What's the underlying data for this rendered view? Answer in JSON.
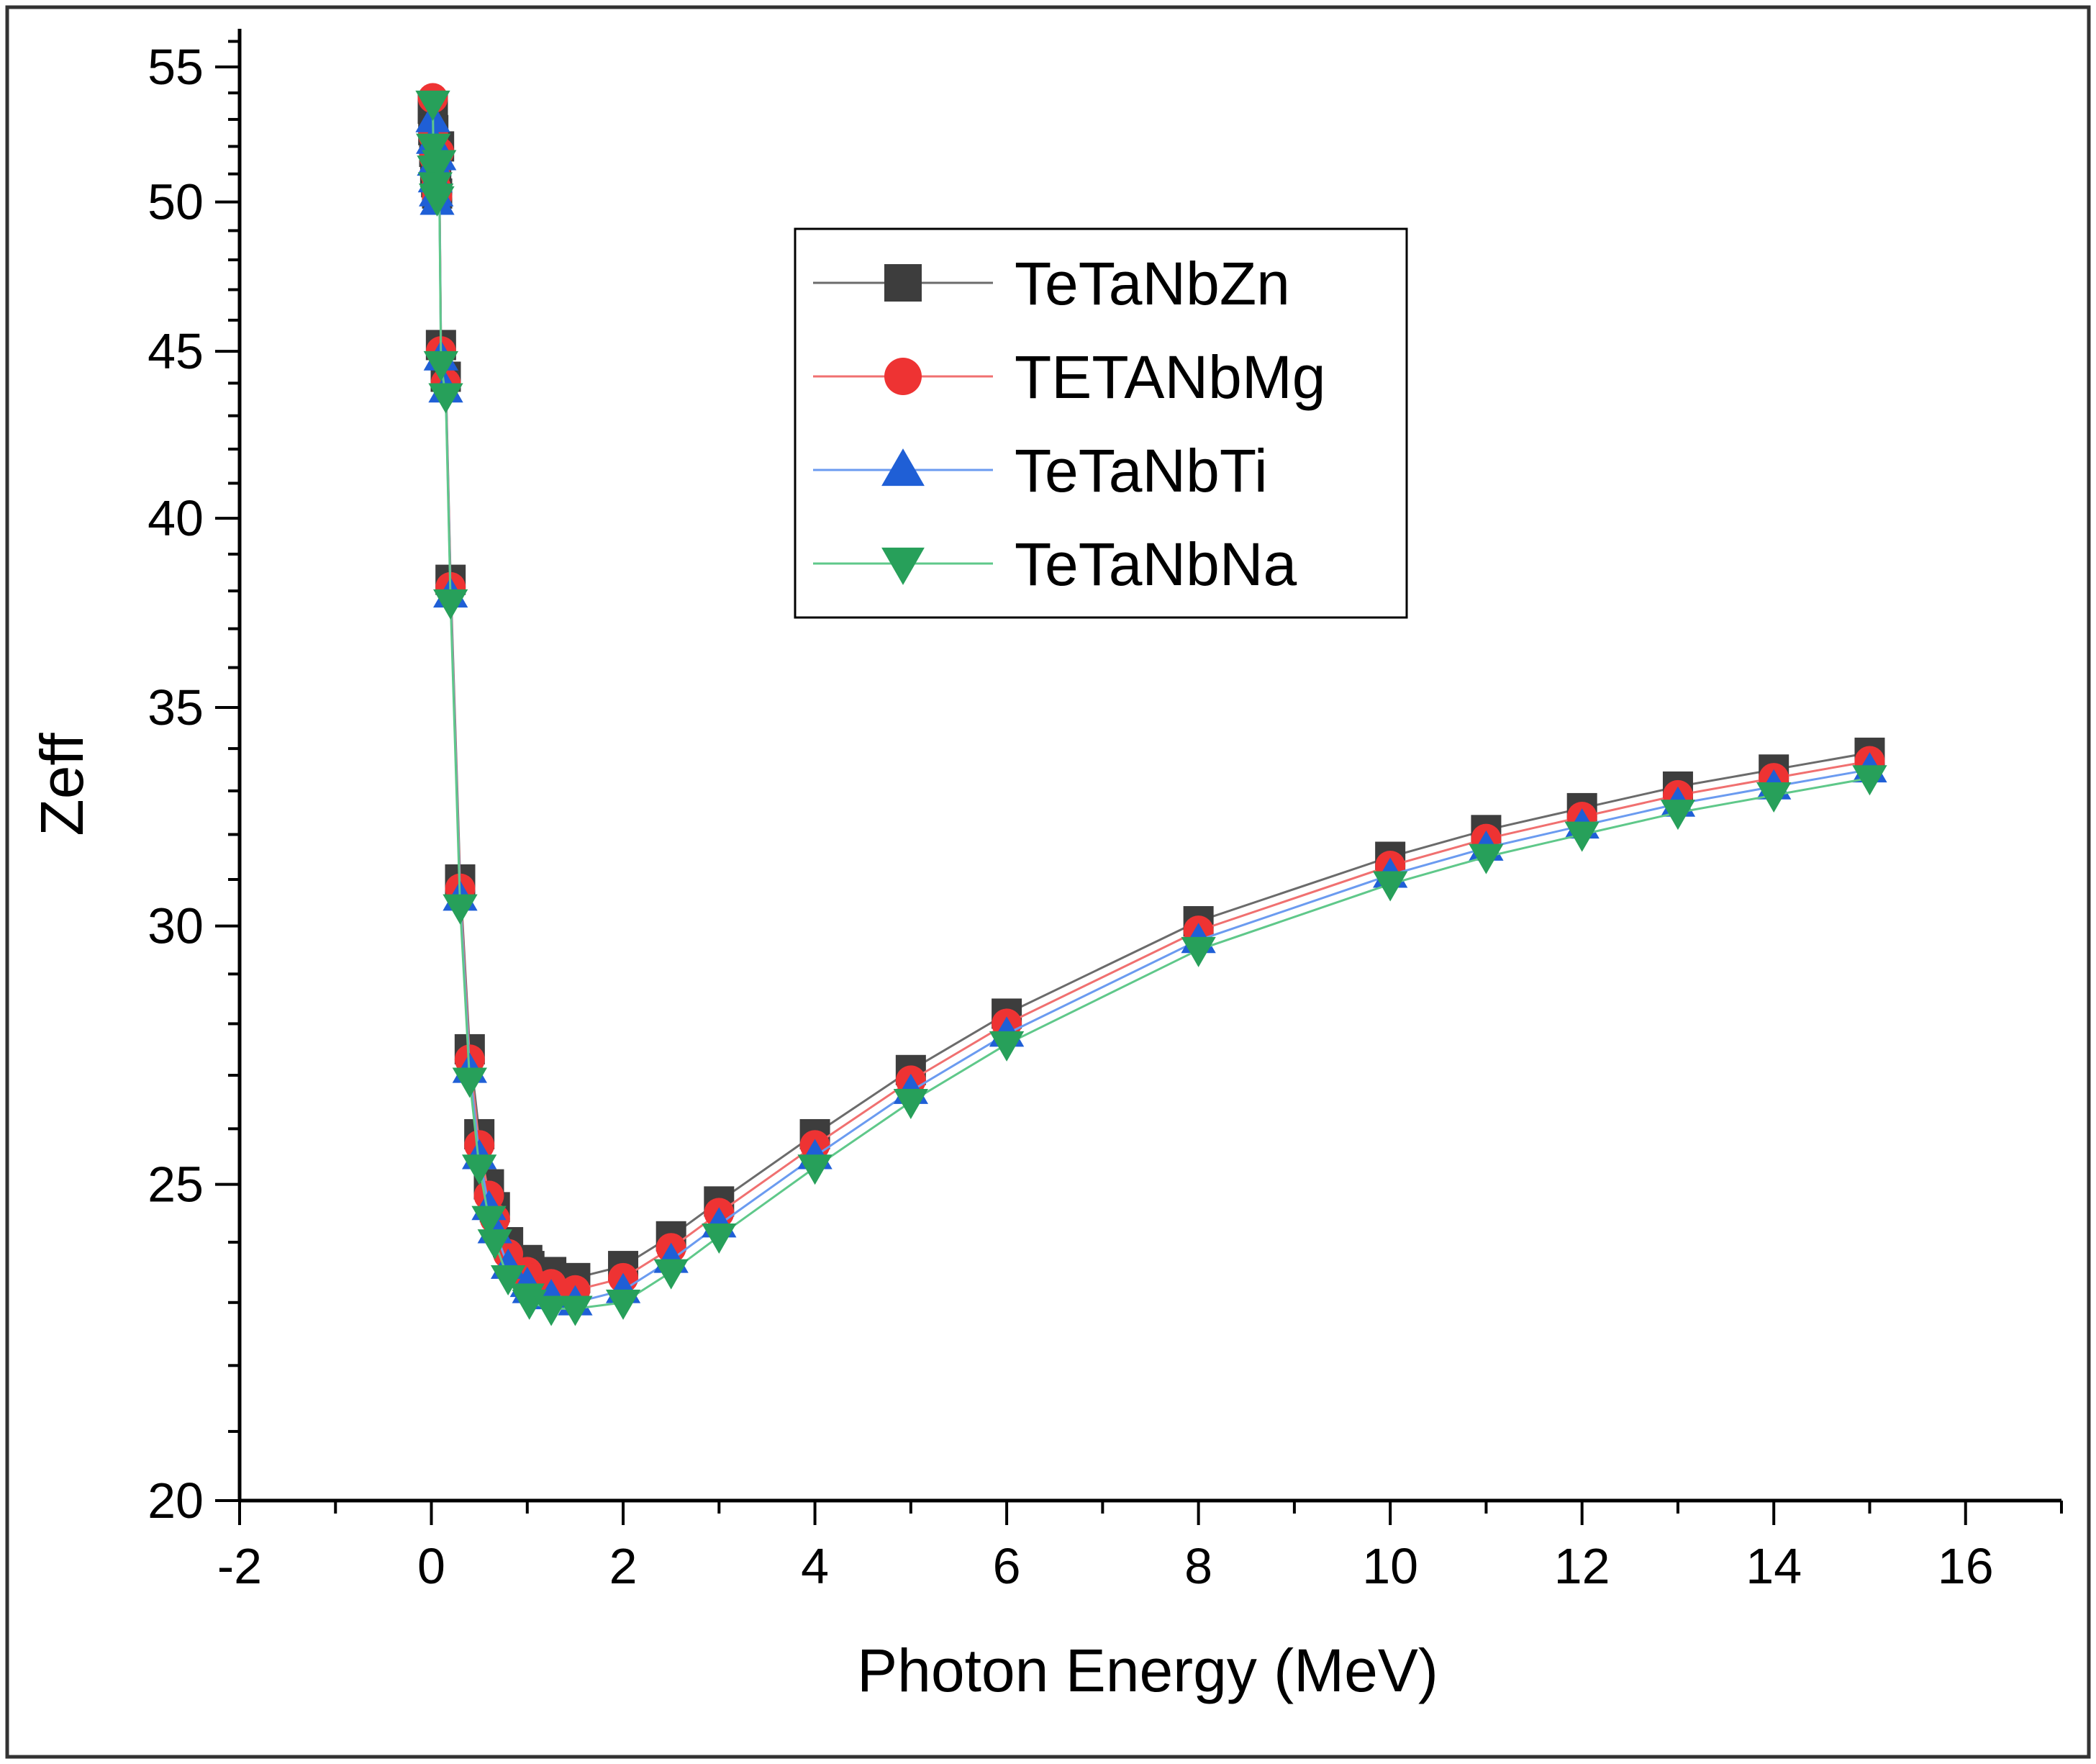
{
  "chart_data": {
    "type": "line",
    "xlabel": "Photon Energy (MeV)",
    "ylabel": "Zeff",
    "xlim": [
      -2,
      17
    ],
    "ylim": [
      20,
      56.5
    ],
    "y_scale": "log",
    "x_ticks": [
      -2,
      0,
      2,
      4,
      6,
      8,
      10,
      12,
      14,
      16
    ],
    "y_ticks": [
      20,
      25,
      30,
      35,
      40,
      45,
      50,
      55
    ],
    "grid": false,
    "legend_position": "top-center",
    "x": [
      0.015,
      0.02,
      0.03,
      0.04,
      0.05,
      0.06,
      0.08,
      0.1,
      0.15,
      0.2,
      0.3,
      0.4,
      0.5,
      0.6,
      0.662,
      0.8,
      1.0,
      1.022,
      1.25,
      1.5,
      2.0,
      2.5,
      3.0,
      4.0,
      5.0,
      6.0,
      8.0,
      10.0,
      11.0,
      12.0,
      13.0,
      14.0,
      15.0
    ],
    "series": [
      {
        "name": "TeTaNbZn",
        "color": "#3d3d3d",
        "line_color": "#6b6b6b",
        "marker": "square",
        "values": [
          53.4,
          52.6,
          51.8,
          51.2,
          50.7,
          50.3,
          52.0,
          45.2,
          44.2,
          38.3,
          31.0,
          27.5,
          25.9,
          25.0,
          24.6,
          24.0,
          23.7,
          23.6,
          23.5,
          23.4,
          23.6,
          24.1,
          24.7,
          25.9,
          27.1,
          28.2,
          30.1,
          31.5,
          32.1,
          32.6,
          33.1,
          33.5,
          33.9
        ]
      },
      {
        "name": "TETANbMg",
        "color": "#ee3333",
        "line_color": "#f07070",
        "marker": "circle",
        "values": [
          53.8,
          52.4,
          51.6,
          51.0,
          50.5,
          50.2,
          51.8,
          45.0,
          44.0,
          38.1,
          30.8,
          27.3,
          25.7,
          24.8,
          24.4,
          23.8,
          23.5,
          23.4,
          23.3,
          23.2,
          23.4,
          23.9,
          24.5,
          25.7,
          26.9,
          28.0,
          29.9,
          31.3,
          31.9,
          32.4,
          32.9,
          33.3,
          33.7
        ]
      },
      {
        "name": "TeTaNbTi",
        "color": "#1f5fd6",
        "line_color": "#6b9bf0",
        "marker": "triangle-up",
        "values": [
          53.0,
          52.2,
          51.4,
          50.8,
          50.3,
          50.0,
          51.6,
          44.8,
          43.8,
          37.9,
          30.6,
          27.1,
          25.5,
          24.6,
          24.2,
          23.6,
          23.3,
          23.2,
          23.1,
          23.0,
          23.2,
          23.7,
          24.3,
          25.5,
          26.7,
          27.8,
          29.7,
          31.1,
          31.7,
          32.2,
          32.7,
          33.1,
          33.5
        ]
      },
      {
        "name": "TeTaNbNa",
        "color": "#27a05a",
        "line_color": "#5fc88a",
        "marker": "triangle-down",
        "values": [
          53.6,
          52.0,
          51.2,
          50.6,
          50.2,
          50.1,
          51.4,
          44.6,
          43.6,
          37.7,
          30.4,
          26.9,
          25.3,
          24.4,
          24.0,
          23.4,
          23.1,
          23.0,
          22.9,
          22.9,
          23.0,
          23.5,
          24.1,
          25.3,
          26.5,
          27.6,
          29.5,
          30.9,
          31.5,
          32.0,
          32.5,
          32.9,
          33.3
        ]
      }
    ]
  }
}
